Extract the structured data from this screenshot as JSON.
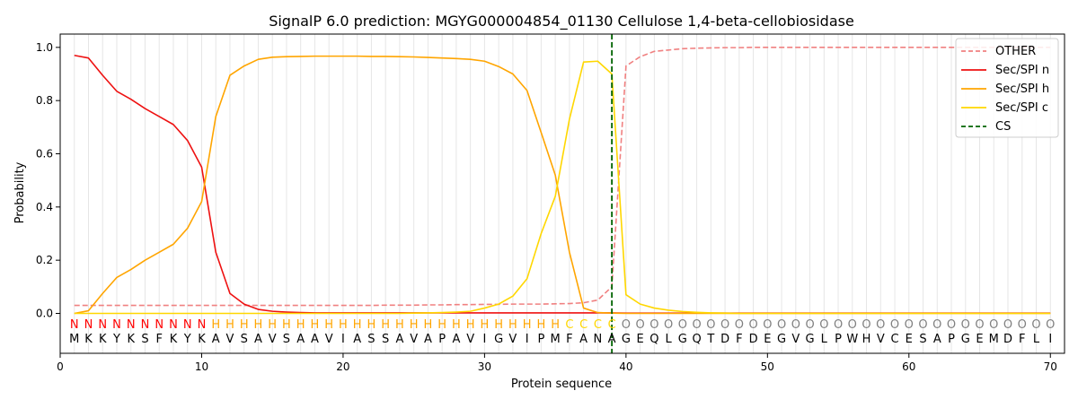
{
  "chart_data": {
    "type": "line",
    "title": "SignalP 6.0 prediction: MGYG000004854_01130 Cellulose 1,4-beta-cellobiosidase",
    "xlabel": "Protein sequence",
    "ylabel": "Probability",
    "xlim": [
      0,
      71
    ],
    "ylim": [
      -0.15,
      1.05
    ],
    "x_ticks": [
      0,
      10,
      20,
      30,
      40,
      50,
      60,
      70
    ],
    "y_ticks": [
      0.0,
      0.2,
      0.4,
      0.6,
      0.8,
      1.0
    ],
    "grid": "vertical lines at every residue",
    "legend_position": "top-right",
    "sequence": "MKKYKSFKYKAVSAVSAAVIASSAVAPAVIGVIPMFANAGEQLGQTDFDEGVGLPWHVCESAPGEMDFLI",
    "labels": "NNNNNNNNNNHHHHHHHHHHHHHHHHHHHHHHHHHCCCCOOOOOOOOOOOOOOOOOOOOOOOOOOOOOOO",
    "label_colors": {
      "N": "#ff0000",
      "H": "#ffa500",
      "C": "#ffd700",
      "O": "#808080"
    },
    "cleavage_site": 39,
    "series": [
      {
        "name": "OTHER",
        "color": "#f08080",
        "dash": "dashed",
        "values": [
          0.03,
          0.03,
          0.03,
          0.03,
          0.03,
          0.03,
          0.03,
          0.03,
          0.03,
          0.03,
          0.03,
          0.03,
          0.03,
          0.03,
          0.03,
          0.03,
          0.03,
          0.03,
          0.03,
          0.03,
          0.03,
          0.03,
          0.031,
          0.031,
          0.031,
          0.032,
          0.032,
          0.033,
          0.033,
          0.034,
          0.034,
          0.035,
          0.035,
          0.035,
          0.036,
          0.037,
          0.04,
          0.05,
          0.1,
          0.93,
          0.965,
          0.985,
          0.99,
          0.995,
          0.997,
          0.998,
          0.999,
          0.999,
          1,
          1,
          1,
          1,
          1,
          1,
          1,
          1,
          1,
          1,
          1,
          1,
          1,
          1,
          1,
          1,
          1,
          1,
          1,
          1,
          1,
          1
        ]
      },
      {
        "name": "Sec/SPI n",
        "color": "#ee1111",
        "dash": "solid",
        "values": [
          0.97,
          0.96,
          0.895,
          0.835,
          0.805,
          0.77,
          0.74,
          0.71,
          0.65,
          0.55,
          0.23,
          0.075,
          0.035,
          0.015,
          0.008,
          0.005,
          0.003,
          0.002,
          0.002,
          0.002,
          0.002,
          0.002,
          0.002,
          0.002,
          0.002,
          0.002,
          0.002,
          0.002,
          0.002,
          0.002,
          0.002,
          0.002,
          0.002,
          0.002,
          0.002,
          0.002,
          0.002,
          0.002,
          0.002,
          0.001,
          0.001,
          0.001,
          0.001,
          0.001,
          0.001,
          0.001,
          0.001,
          0.001,
          0.001,
          0.001,
          0.001,
          0.001,
          0.001,
          0.001,
          0.001,
          0.001,
          0.001,
          0.001,
          0.001,
          0.001,
          0.001,
          0.001,
          0.001,
          0.001,
          0.001,
          0.001,
          0.001,
          0.001,
          0.001,
          0.001
        ]
      },
      {
        "name": "Sec/SPI h",
        "color": "#ffa500",
        "dash": "solid",
        "values": [
          0.0,
          0.01,
          0.075,
          0.135,
          0.165,
          0.2,
          0.23,
          0.26,
          0.32,
          0.42,
          0.74,
          0.895,
          0.93,
          0.955,
          0.963,
          0.965,
          0.966,
          0.967,
          0.967,
          0.967,
          0.967,
          0.966,
          0.966,
          0.965,
          0.964,
          0.962,
          0.96,
          0.958,
          0.955,
          0.948,
          0.928,
          0.9,
          0.838,
          0.68,
          0.52,
          0.23,
          0.02,
          0.003,
          0.001,
          0,
          0,
          0,
          0,
          0,
          0,
          0,
          0,
          0,
          0,
          0,
          0,
          0,
          0,
          0,
          0,
          0,
          0,
          0,
          0,
          0,
          0,
          0,
          0,
          0,
          0,
          0,
          0,
          0,
          0,
          0
        ]
      },
      {
        "name": "Sec/SPI c",
        "color": "#ffd700",
        "dash": "solid",
        "values": [
          0,
          0,
          0,
          0,
          0,
          0,
          0,
          0,
          0,
          0,
          0,
          0,
          0,
          0,
          0,
          0,
          0,
          0,
          0,
          0,
          0,
          0,
          0,
          0,
          0.001,
          0.002,
          0.003,
          0.005,
          0.008,
          0.02,
          0.035,
          0.065,
          0.13,
          0.3,
          0.44,
          0.73,
          0.945,
          0.948,
          0.9,
          0.07,
          0.035,
          0.02,
          0.012,
          0.007,
          0.004,
          0.002,
          0.001,
          0,
          0,
          0,
          0,
          0,
          0,
          0,
          0,
          0,
          0,
          0,
          0,
          0,
          0,
          0,
          0,
          0,
          0,
          0,
          0,
          0,
          0,
          0
        ]
      },
      {
        "name": "CS",
        "color": "#006400",
        "dash": "dashed",
        "values": []
      }
    ]
  }
}
